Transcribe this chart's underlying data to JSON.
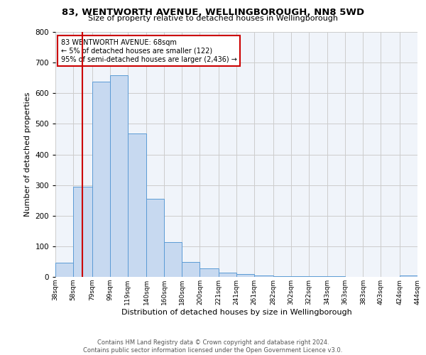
{
  "title": "83, WENTWORTH AVENUE, WELLINGBOROUGH, NN8 5WD",
  "subtitle": "Size of property relative to detached houses in Wellingborough",
  "xlabel": "Distribution of detached houses by size in Wellingborough",
  "ylabel": "Number of detached properties",
  "footer_line1": "Contains HM Land Registry data © Crown copyright and database right 2024.",
  "footer_line2": "Contains public sector information licensed under the Open Government Licence v3.0.",
  "bin_labels": [
    "38sqm",
    "58sqm",
    "79sqm",
    "99sqm",
    "119sqm",
    "140sqm",
    "160sqm",
    "180sqm",
    "200sqm",
    "221sqm",
    "241sqm",
    "261sqm",
    "282sqm",
    "302sqm",
    "322sqm",
    "343sqm",
    "363sqm",
    "383sqm",
    "403sqm",
    "424sqm",
    "444sqm"
  ],
  "bar_values": [
    47,
    295,
    638,
    658,
    468,
    254,
    114,
    48,
    28,
    15,
    10,
    5,
    3,
    2,
    3,
    2,
    1,
    1,
    0,
    5
  ],
  "bar_color": "#c7d9f0",
  "bar_edge_color": "#5b9bd5",
  "annotation_text": "83 WENTWORTH AVENUE: 68sqm\n← 5% of detached houses are smaller (122)\n95% of semi-detached houses are larger (2,436) →",
  "annotation_box_color": "#ffffff",
  "annotation_box_edge": "#cc0000",
  "vline_x": 68,
  "vline_color": "#cc0000",
  "ylim": [
    0,
    800
  ],
  "yticks": [
    0,
    100,
    200,
    300,
    400,
    500,
    600,
    700,
    800
  ],
  "grid_color": "#cccccc",
  "bg_color": "#f0f4fa",
  "bin_edges": [
    38,
    58,
    79,
    99,
    119,
    140,
    160,
    180,
    200,
    221,
    241,
    261,
    282,
    302,
    322,
    343,
    363,
    383,
    403,
    424,
    444
  ]
}
